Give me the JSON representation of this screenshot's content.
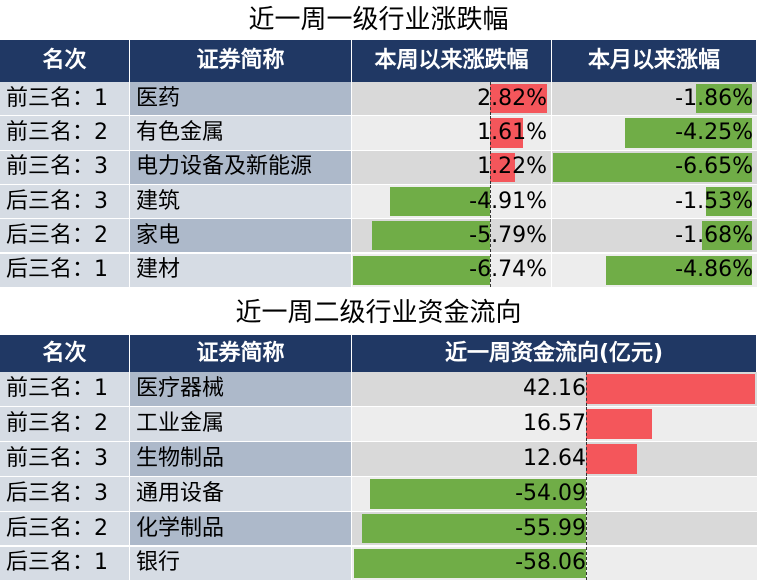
{
  "table1": {
    "title": "近一周一级行业涨跌幅",
    "headers": [
      "名次",
      "证券简称",
      "本周以来涨跌幅",
      "本月以来涨幅"
    ],
    "rows": [
      {
        "rank": "前三名：1",
        "name": "医药",
        "week": 2.82,
        "week_label": "2.82%",
        "month": -1.86,
        "month_label": "-1.86%"
      },
      {
        "rank": "前三名：2",
        "name": "有色金属",
        "week": 1.61,
        "week_label": "1.61%",
        "month": -4.25,
        "month_label": "-4.25%"
      },
      {
        "rank": "前三名：3",
        "name": "电力设备及新能源",
        "week": 1.22,
        "week_label": "1.22%",
        "month": -6.65,
        "month_label": "-6.65%"
      },
      {
        "rank": "后三名：3",
        "name": "建筑",
        "week": -4.91,
        "week_label": "-4.91%",
        "month": -1.53,
        "month_label": "-1.53%"
      },
      {
        "rank": "后三名：2",
        "name": "家电",
        "week": -5.79,
        "week_label": "-5.79%",
        "month": -1.68,
        "month_label": "-1.68%"
      },
      {
        "rank": "后三名：1",
        "name": "建材",
        "week": -6.74,
        "week_label": "-6.74%",
        "month": -4.86,
        "month_label": "-4.86%"
      }
    ]
  },
  "table2": {
    "title": "近一周二级行业资金流向",
    "headers": [
      "名次",
      "证券简称",
      "近一周资金流向(亿元)"
    ],
    "rows": [
      {
        "rank": "前三名：1",
        "name": "医疗器械",
        "flow": 42.16
      },
      {
        "rank": "前三名：2",
        "name": "工业金属",
        "flow": 16.57
      },
      {
        "rank": "前三名：3",
        "name": "生物制品",
        "flow": 12.64
      },
      {
        "rank": "后三名：3",
        "name": "通用设备",
        "flow": -54.09
      },
      {
        "rank": "后三名：2",
        "name": "化学制品",
        "flow": -55.99
      },
      {
        "rank": "后三名：1",
        "name": "银行",
        "flow": -58.06
      }
    ]
  }
}
